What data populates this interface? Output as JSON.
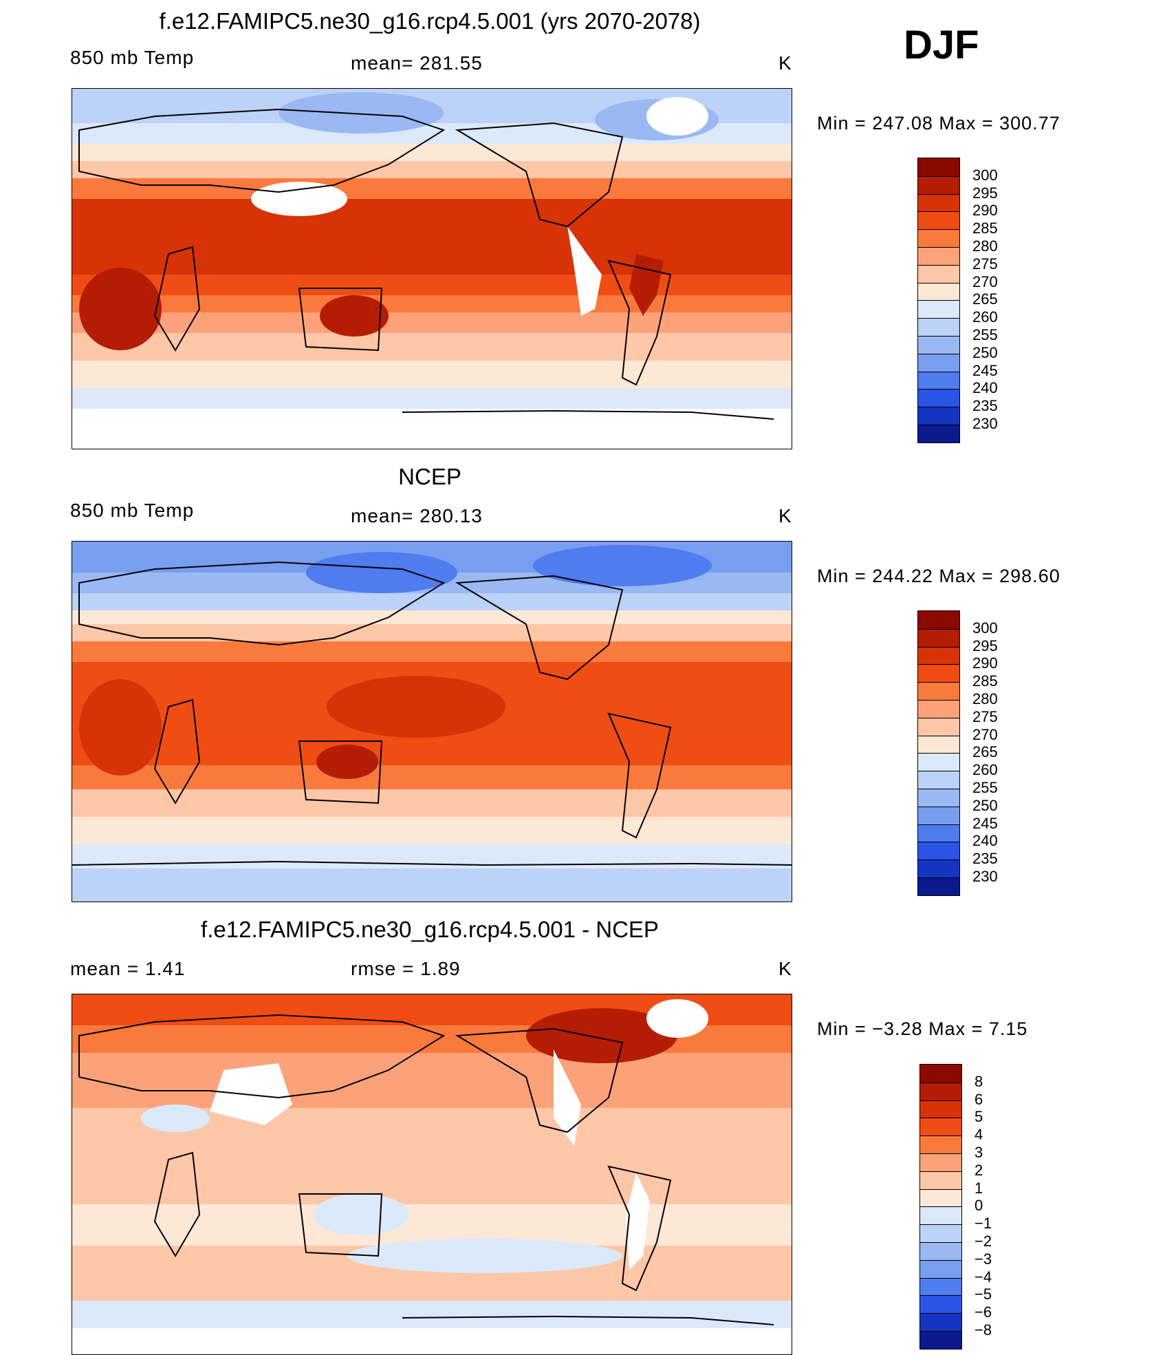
{
  "season": "DJF",
  "panels": [
    {
      "title": "f.e12.FAMIPC5.ne30_g16.rcp4.5.001 (yrs 2070-2078)",
      "left_label": "850 mb Temp",
      "center_label": "mean= 281.55",
      "units": "K",
      "minmax": "Min = 247.08 Max = 300.77",
      "kind": "abs"
    },
    {
      "title": "NCEP",
      "left_label": "850 mb Temp",
      "center_label": "mean= 280.13",
      "units": "K",
      "minmax": "Min = 244.22 Max = 298.60",
      "kind": "abs"
    },
    {
      "title": "f.e12.FAMIPC5.ne30_g16.rcp4.5.001 - NCEP",
      "left_label": "mean =     1.41",
      "center_label": "rmse =     1.89",
      "units": "K",
      "minmax": "Min =   −3.28 Max =     7.15",
      "kind": "diff"
    }
  ],
  "colorbars": {
    "abs": {
      "labels": [
        "300",
        "295",
        "290",
        "285",
        "280",
        "275",
        "270",
        "265",
        "260",
        "255",
        "250",
        "245",
        "240",
        "235",
        "230"
      ],
      "colors": [
        "#8b0a00",
        "#b51c04",
        "#d83207",
        "#f04d14",
        "#fa7a3e",
        "#fca27a",
        "#fdc7a8",
        "#fde8d6",
        "#dbe9fb",
        "#bcd2f7",
        "#9ab9f3",
        "#789ef0",
        "#4f7cee",
        "#2a55e6",
        "#1434c2",
        "#0b1a8c"
      ]
    },
    "diff": {
      "labels": [
        "8",
        "6",
        "5",
        "4",
        "3",
        "2",
        "1",
        "0",
        "−1",
        "−2",
        "−3",
        "−4",
        "−5",
        "−6",
        "−8"
      ],
      "colors": [
        "#8b0a00",
        "#b51c04",
        "#d83207",
        "#f04d14",
        "#fa7a3e",
        "#fca27a",
        "#fdc7a8",
        "#fde8d6",
        "#dbe9fb",
        "#bcd2f7",
        "#9ab9f3",
        "#789ef0",
        "#4f7cee",
        "#2a55e6",
        "#1434c2",
        "#0b1a8c"
      ]
    }
  }
}
